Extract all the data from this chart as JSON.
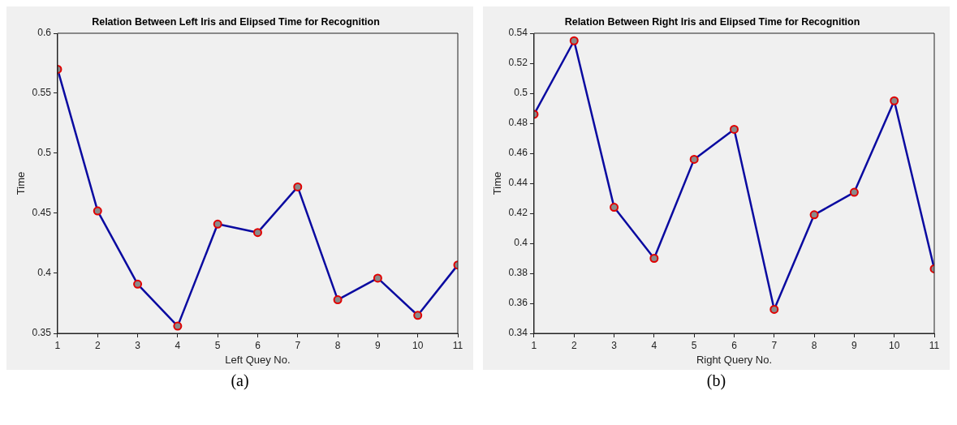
{
  "chart_data": [
    {
      "type": "line",
      "title": "Relation Between Left Iris and Elipsed Time for Recognition",
      "xlabel": "Left Quey No.",
      "ylabel": "Time",
      "x": [
        1,
        2,
        3,
        4,
        5,
        6,
        7,
        8,
        9,
        10,
        11
      ],
      "series": [
        {
          "color": "#0a0aa0",
          "values": [
            0.57,
            0.452,
            0.391,
            0.356,
            0.441,
            0.434,
            0.472,
            0.378,
            0.396,
            0.365,
            0.407
          ]
        }
      ],
      "xlim": [
        1,
        11
      ],
      "xticks": [
        1,
        2,
        3,
        4,
        5,
        6,
        7,
        8,
        9,
        10,
        11
      ],
      "ylim": [
        0.35,
        0.6
      ],
      "yticks": [
        0.35,
        0.4,
        0.45,
        0.5,
        0.55,
        0.6
      ],
      "marker": "circle",
      "grid": false,
      "legend": false,
      "annotations": [
        "(a)"
      ]
    },
    {
      "type": "line",
      "title": "Relation Between Right Iris and Elipsed Time for Recognition",
      "xlabel": "Right Query No.",
      "ylabel": "Time",
      "x": [
        1,
        2,
        3,
        4,
        5,
        6,
        7,
        8,
        9,
        10,
        11
      ],
      "series": [
        {
          "color": "#0a0aa0",
          "values": [
            0.486,
            0.535,
            0.424,
            0.39,
            0.456,
            0.476,
            0.356,
            0.419,
            0.434,
            0.495,
            0.383
          ]
        }
      ],
      "xlim": [
        1,
        11
      ],
      "xticks": [
        1,
        2,
        3,
        4,
        5,
        6,
        7,
        8,
        9,
        10,
        11
      ],
      "ylim": [
        0.34,
        0.54
      ],
      "yticks": [
        0.34,
        0.36,
        0.38,
        0.4,
        0.42,
        0.44,
        0.46,
        0.48,
        0.5,
        0.52,
        0.54
      ],
      "marker": "circle",
      "grid": false,
      "legend": false,
      "annotations": [
        "(b)"
      ]
    }
  ]
}
